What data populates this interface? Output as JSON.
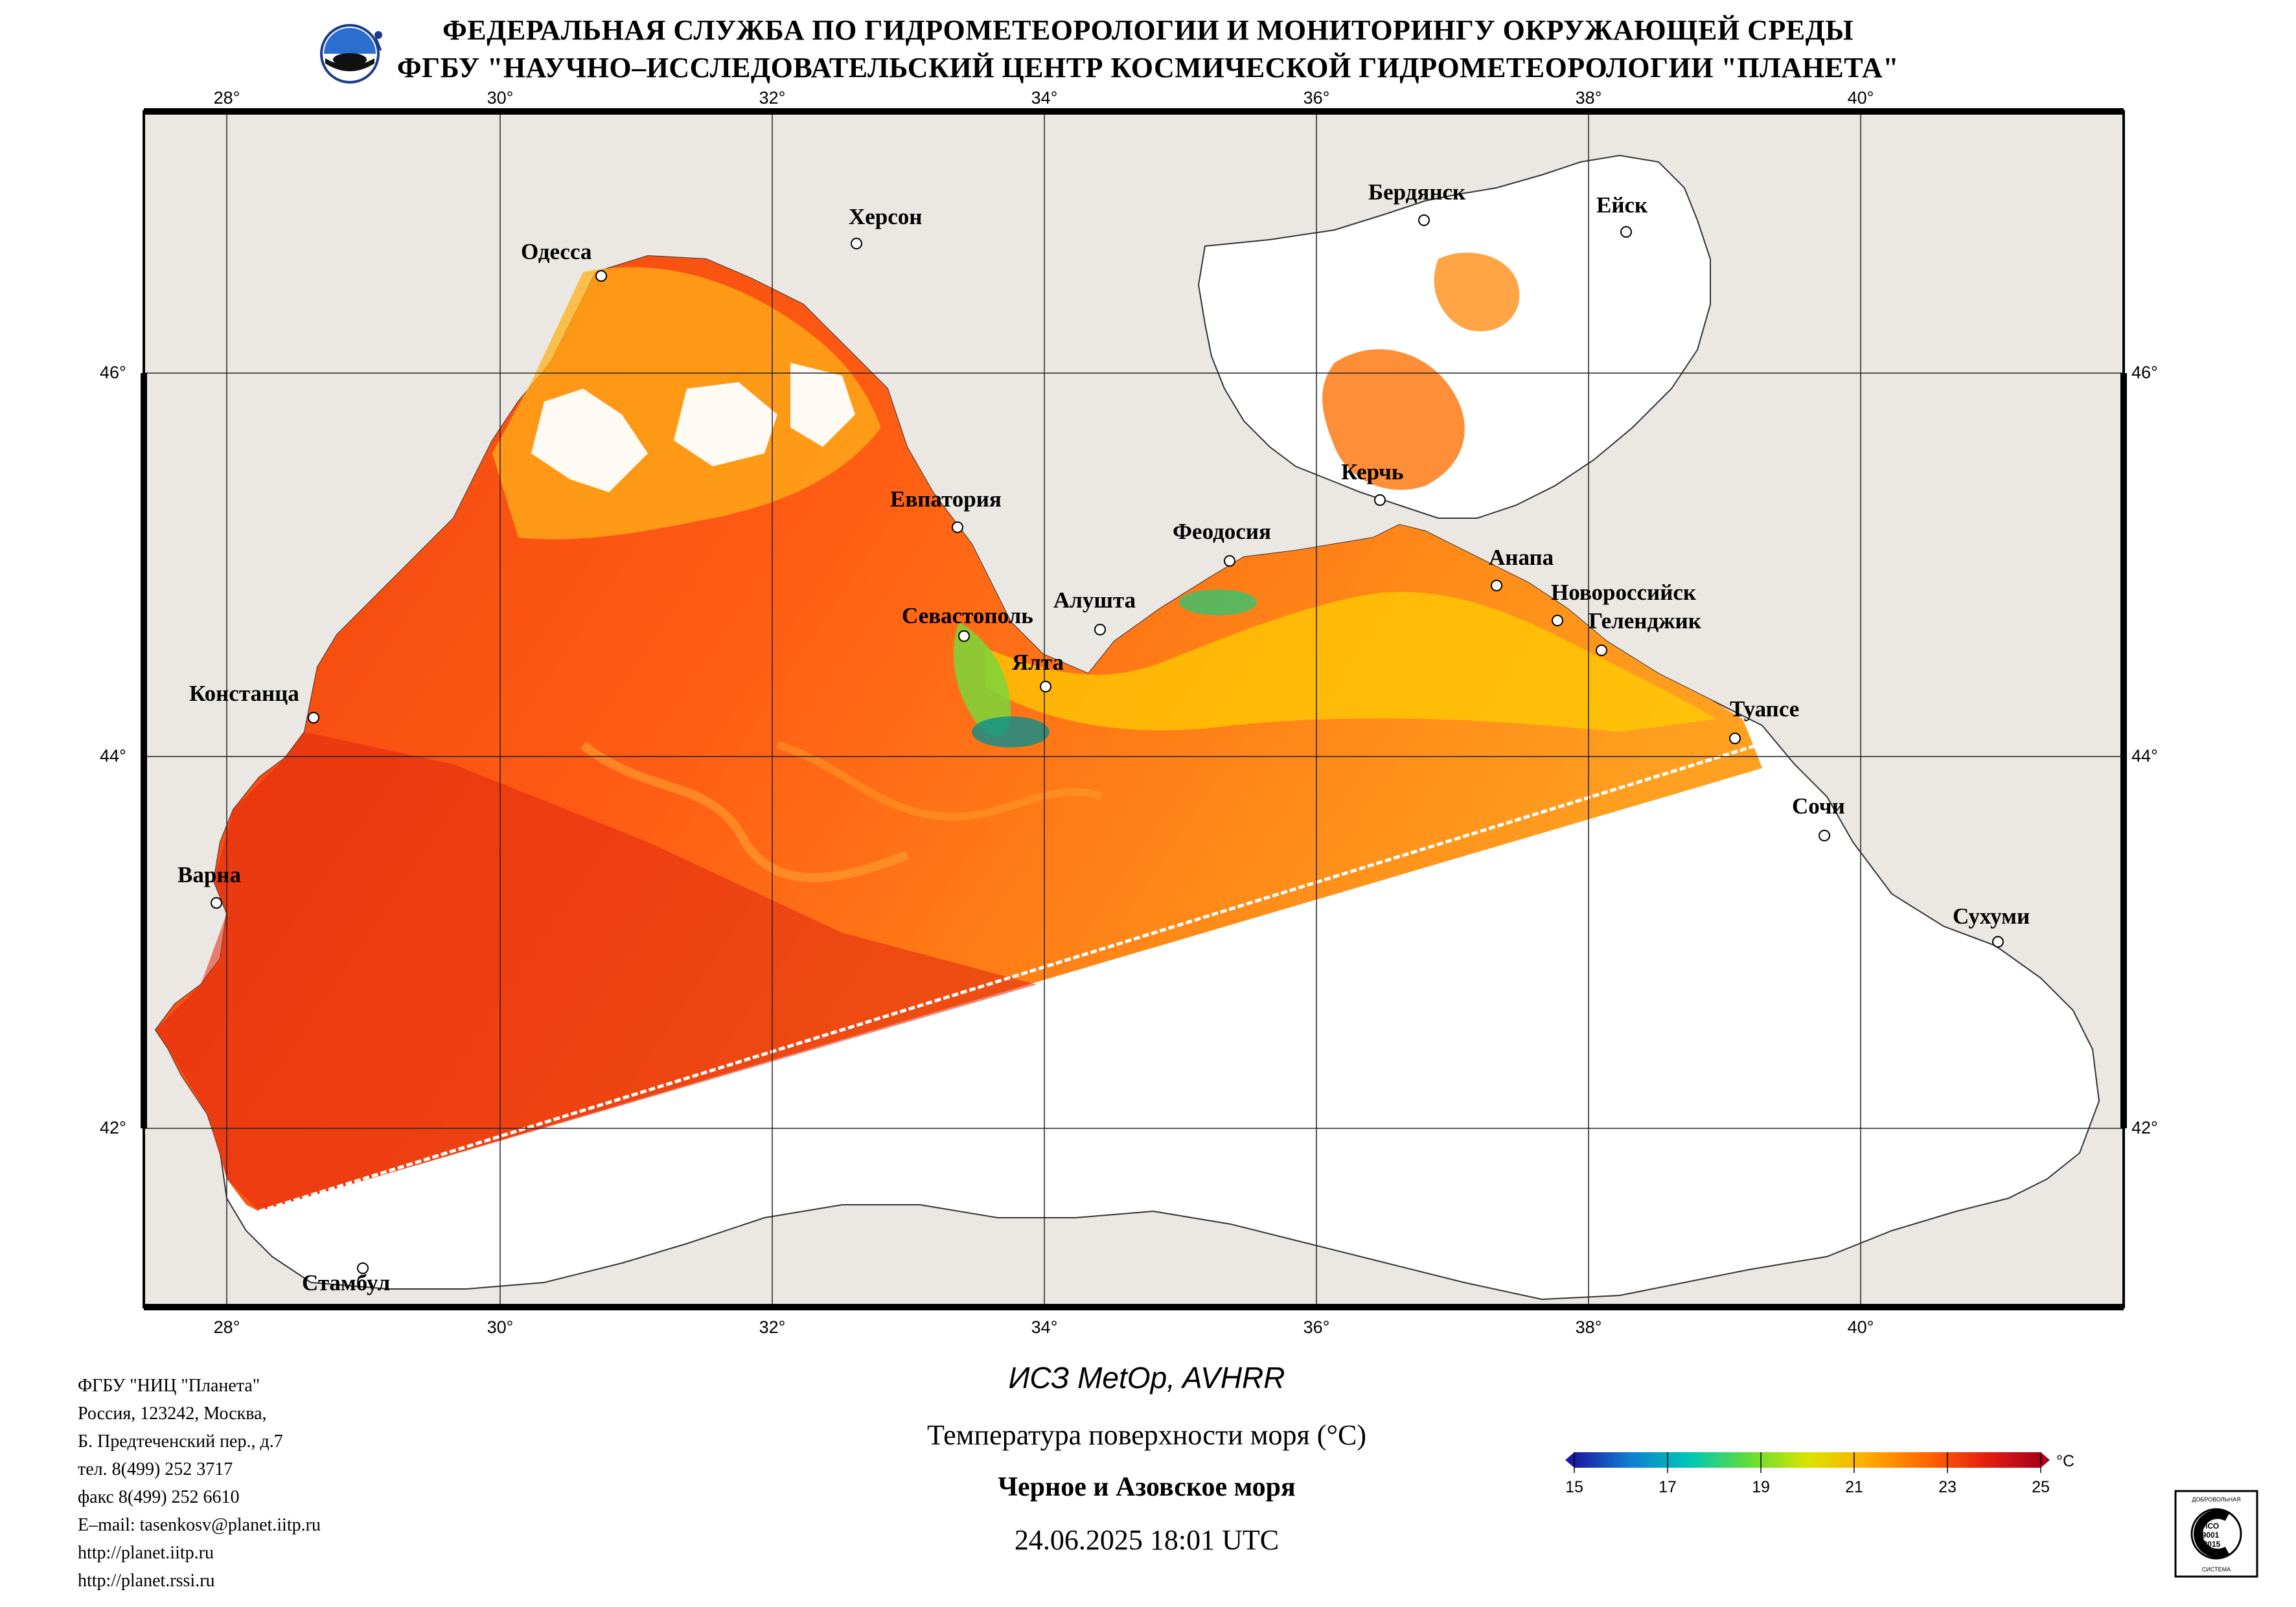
{
  "header": {
    "line1": "ФЕДЕРАЛЬНАЯ СЛУЖБА ПО ГИДРОМЕТЕОРОЛОГИИ И МОНИТОРИНГУ ОКРУЖАЮЩЕЙ СРЕДЫ",
    "line2": "ФГБУ \"НАУЧНО–ИССЛЕДОВАТЕЛЬСКИЙ ЦЕНТР КОСМИЧЕСКОЙ ГИДРОМЕТЕОРОЛОГИИ \"ПЛАНЕТА\""
  },
  "map": {
    "lon_labels": [
      "28°",
      "30°",
      "32°",
      "34°",
      "36°",
      "38°",
      "40°"
    ],
    "lat_labels": [
      "46°",
      "44°",
      "42°"
    ],
    "cities": [
      {
        "name": "Херсон"
      },
      {
        "name": "Одесса"
      },
      {
        "name": "Бердянск"
      },
      {
        "name": "Ейск"
      },
      {
        "name": "Евпатория"
      },
      {
        "name": "Керчь"
      },
      {
        "name": "Феодосия"
      },
      {
        "name": "Анапа"
      },
      {
        "name": "Новороссийск"
      },
      {
        "name": "Геленджик"
      },
      {
        "name": "Севастополь"
      },
      {
        "name": "Алушта"
      },
      {
        "name": "Ялта"
      },
      {
        "name": "Констанца"
      },
      {
        "name": "Туапсе"
      },
      {
        "name": "Сочи"
      },
      {
        "name": "Варна"
      },
      {
        "name": "Сухуми"
      },
      {
        "name": "Стамбул"
      }
    ],
    "colors": {
      "land": "#ebe8e3",
      "sea_warm": "#ff5a14",
      "sea_hot": "#d8160f",
      "no_data": "#ffffff"
    }
  },
  "info": {
    "org": "ФГБУ \"НИЦ \"Планета\"",
    "address1": "Россия, 123242, Москва,",
    "address2": "Б. Предтеченский пер., д.7",
    "phone": "тел. 8(499) 252 3717",
    "fax": "факс 8(499) 252 6610",
    "email": "E–mail: tasenkosv@planet.iitp.ru",
    "url1": "http://planet.iitp.ru",
    "url2": "http://planet.rssi.ru"
  },
  "caption": {
    "satellite": "ИСЗ MetOp, AVHRR",
    "parameter": "Температура поверхности моря (°C)",
    "region": "Черное и Азовское моря",
    "datetime": "24.06.2025 18:01 UTC"
  },
  "colorbar": {
    "unit": "°C",
    "ticks": [
      "15",
      "17",
      "19",
      "21",
      "23",
      "25"
    ],
    "colors": [
      "#1a1aa6",
      "#0f7fd0",
      "#00c8b4",
      "#66dd33",
      "#d8e400",
      "#ffb000",
      "#ff6a00",
      "#e62010",
      "#a8001a"
    ]
  },
  "certificate": {
    "top_text": "ДОБРОВОЛЬНАЯ",
    "center1": "ИСО",
    "center2": "9001",
    "center3": "-2015",
    "bottom_text": "СИСТЕМА"
  }
}
